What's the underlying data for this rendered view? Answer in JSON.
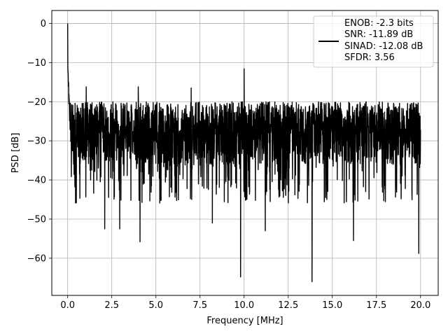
{
  "chart_data": {
    "type": "line",
    "xlabel": "Frequency [MHz]",
    "ylabel": "PSD [dB]",
    "xlim": [
      -0.9,
      21.0
    ],
    "ylim": [
      -69.5,
      3.3
    ],
    "grid": true,
    "x_ticks": [
      0.0,
      2.5,
      5.0,
      7.5,
      10.0,
      12.5,
      15.0,
      17.5,
      20.0
    ],
    "x_tick_labels": [
      "0.0",
      "2.5",
      "5.0",
      "7.5",
      "10.0",
      "12.5",
      "15.0",
      "17.5",
      "20.0"
    ],
    "y_ticks": [
      0,
      -10,
      -20,
      -30,
      -40,
      -50,
      -60
    ],
    "y_tick_labels": [
      "0",
      "−10",
      "−20",
      "−30",
      "−40",
      "−50",
      "−60"
    ],
    "legend": {
      "location": "top-right",
      "entries": [
        "ENOB: -2.3 bits",
        "SNR: -11.89 dB",
        "SINAD: -12.08 dB",
        "SFDR: 3.56"
      ]
    },
    "series": [
      {
        "color": "#000000",
        "x_range": [
          0.0,
          20.0
        ],
        "noise_floor_band": [
          -36,
          -20
        ],
        "dc_peak": {
          "x": 0.0,
          "y": 0.0
        },
        "spikes": [
          {
            "x": 10.0,
            "y": -11.6
          },
          {
            "x": 1.05,
            "y": -16.2
          },
          {
            "x": 4.0,
            "y": -16.2
          },
          {
            "x": 7.0,
            "y": -16.5
          }
        ],
        "dips": [
          {
            "x": 9.8,
            "y": -64.8
          },
          {
            "x": 13.85,
            "y": -66.0
          },
          {
            "x": 4.1,
            "y": -55.8
          },
          {
            "x": 2.1,
            "y": -52.5
          },
          {
            "x": 2.95,
            "y": -52.5
          },
          {
            "x": 19.9,
            "y": -58.8
          },
          {
            "x": 16.2,
            "y": -55.5
          },
          {
            "x": 11.2,
            "y": -53.0
          },
          {
            "x": 8.2,
            "y": -51.0
          }
        ]
      }
    ]
  }
}
